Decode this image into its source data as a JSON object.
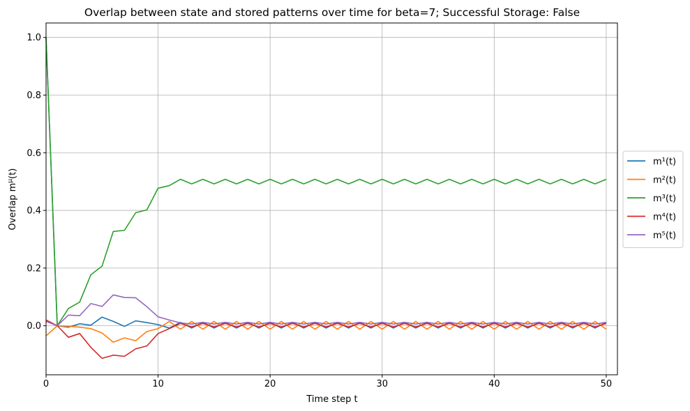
{
  "chart_data": {
    "type": "line",
    "title": "Overlap between state and stored patterns over time for beta=7; Successful Storage: False",
    "xlabel": "Time step t",
    "ylabel": "Overlap m",
    "ylabel_sup": "μ",
    "ylabel_tail": "(t)",
    "xlim": [
      0,
      51
    ],
    "ylim": [
      -0.17,
      1.05
    ],
    "xticks": [
      0,
      10,
      20,
      30,
      40,
      50
    ],
    "yticks": [
      0.0,
      0.2,
      0.4,
      0.6,
      0.8,
      1.0
    ],
    "grid": true,
    "legend_placement": "center-right-outside",
    "x": [
      0,
      1,
      2,
      3,
      4,
      5,
      6,
      7,
      8,
      9,
      10,
      11,
      12,
      13,
      14,
      15,
      16,
      17,
      18,
      19,
      20,
      21,
      22,
      23,
      24,
      25,
      26,
      27,
      28,
      29,
      30,
      31,
      32,
      33,
      34,
      35,
      36,
      37,
      38,
      39,
      40,
      41,
      42,
      43,
      44,
      45,
      46,
      47,
      48,
      49,
      50
    ],
    "series": [
      {
        "name": "m¹(t)",
        "sup": "1",
        "color": "#1f77b4",
        "values": [
          1.0,
          0.0,
          -0.005,
          0.007,
          0.002,
          0.03,
          0.015,
          -0.002,
          0.017,
          0.011,
          0.004,
          -0.008,
          0.012,
          -0.008,
          0.012,
          -0.008,
          0.012,
          -0.008,
          0.012,
          -0.008,
          0.012,
          -0.008,
          0.012,
          -0.008,
          0.012,
          -0.008,
          0.012,
          -0.008,
          0.012,
          -0.008,
          0.012,
          -0.008,
          0.012,
          -0.008,
          0.012,
          -0.008,
          0.012,
          -0.008,
          0.012,
          -0.008,
          0.012,
          -0.008,
          0.012,
          -0.008,
          0.012,
          -0.008,
          0.012,
          -0.008,
          0.012,
          -0.008,
          0.012
        ]
      },
      {
        "name": "m²(t)",
        "sup": "2",
        "color": "#ff7f0e",
        "values": [
          -0.035,
          0.0,
          -0.002,
          -0.005,
          -0.01,
          -0.025,
          -0.057,
          -0.042,
          -0.052,
          -0.02,
          -0.01,
          0.015,
          -0.012,
          0.015,
          -0.012,
          0.015,
          -0.012,
          0.015,
          -0.012,
          0.015,
          -0.012,
          0.015,
          -0.012,
          0.015,
          -0.012,
          0.015,
          -0.012,
          0.015,
          -0.012,
          0.015,
          -0.012,
          0.015,
          -0.012,
          0.015,
          -0.012,
          0.015,
          -0.012,
          0.015,
          -0.012,
          0.015,
          -0.012,
          0.015,
          -0.012,
          0.015,
          -0.012,
          0.015,
          -0.012,
          0.015,
          -0.012,
          0.015,
          -0.012
        ]
      },
      {
        "name": "m³(t)",
        "sup": "3",
        "color": "#2ca02c",
        "values": [
          1.0,
          0.0,
          0.06,
          0.082,
          0.177,
          0.207,
          0.327,
          0.331,
          0.392,
          0.402,
          0.477,
          0.486,
          0.508,
          0.492,
          0.508,
          0.492,
          0.508,
          0.492,
          0.508,
          0.492,
          0.508,
          0.492,
          0.508,
          0.492,
          0.508,
          0.492,
          0.508,
          0.492,
          0.508,
          0.492,
          0.508,
          0.492,
          0.508,
          0.492,
          0.508,
          0.492,
          0.508,
          0.492,
          0.508,
          0.492,
          0.508,
          0.492,
          0.508,
          0.492,
          0.508,
          0.492,
          0.508,
          0.492,
          0.508,
          0.492,
          0.508
        ]
      },
      {
        "name": "m⁴(t)",
        "sup": "4",
        "color": "#d62728",
        "values": [
          0.02,
          0.0,
          -0.04,
          -0.027,
          -0.075,
          -0.113,
          -0.102,
          -0.106,
          -0.08,
          -0.07,
          -0.027,
          -0.01,
          0.008,
          -0.004,
          0.008,
          -0.004,
          0.008,
          -0.004,
          0.008,
          -0.004,
          0.008,
          -0.004,
          0.008,
          -0.004,
          0.008,
          -0.004,
          0.008,
          -0.004,
          0.008,
          -0.004,
          0.008,
          -0.004,
          0.008,
          -0.004,
          0.008,
          -0.004,
          0.008,
          -0.004,
          0.008,
          -0.004,
          0.008,
          -0.004,
          0.008,
          -0.004,
          0.008,
          -0.004,
          0.008,
          -0.004,
          0.008,
          -0.004,
          0.008
        ]
      },
      {
        "name": "m⁵(t)",
        "sup": "5",
        "color": "#9467bd",
        "values": [
          0.015,
          0.0,
          0.037,
          0.035,
          0.077,
          0.067,
          0.107,
          0.098,
          0.097,
          0.066,
          0.031,
          0.02,
          0.01,
          0.006,
          0.012,
          0.006,
          0.012,
          0.006,
          0.012,
          0.006,
          0.012,
          0.006,
          0.012,
          0.006,
          0.012,
          0.006,
          0.012,
          0.006,
          0.012,
          0.006,
          0.012,
          0.006,
          0.012,
          0.006,
          0.012,
          0.006,
          0.012,
          0.006,
          0.012,
          0.006,
          0.012,
          0.006,
          0.012,
          0.006,
          0.012,
          0.006,
          0.012,
          0.006,
          0.012,
          0.006,
          0.012
        ]
      }
    ]
  }
}
